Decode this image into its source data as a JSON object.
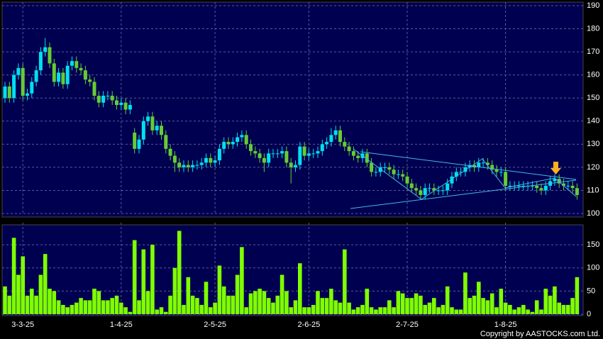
{
  "chart_data": [
    {
      "type": "candlestick",
      "categories": [
        null,
        null,
        null,
        null,
        "3-3-25",
        null,
        null,
        null,
        null,
        null,
        null,
        null,
        null,
        null,
        null,
        null,
        null,
        null,
        null,
        null,
        null,
        null,
        null,
        null,
        null,
        null,
        "1-4-25",
        null,
        null,
        null,
        null,
        null,
        null,
        null,
        null,
        null,
        null,
        null,
        null,
        null,
        null,
        null,
        null,
        null,
        null,
        null,
        null,
        "2-5-25",
        null,
        null,
        null,
        null,
        null,
        null,
        null,
        null,
        null,
        null,
        null,
        null,
        null,
        null,
        null,
        null,
        null,
        null,
        null,
        null,
        "2-6-25",
        null,
        null,
        null,
        null,
        null,
        null,
        null,
        null,
        null,
        null,
        null,
        null,
        null,
        null,
        null,
        null,
        null,
        null,
        null,
        null,
        null,
        "2-7-25",
        null,
        null,
        null,
        null,
        null,
        null,
        null,
        null,
        null,
        null,
        null,
        null,
        null,
        null,
        null,
        null,
        null,
        null,
        null,
        null,
        null,
        "1-8-25",
        null,
        null,
        null,
        null,
        null,
        null,
        null,
        null,
        null,
        null,
        null,
        null,
        null,
        null,
        null,
        null
      ],
      "open": [
        150,
        155,
        150,
        160,
        163,
        151,
        152,
        157,
        162,
        170,
        172,
        165,
        157,
        161,
        156,
        164,
        166,
        163,
        162,
        158,
        157,
        151,
        148,
        151,
        151,
        149,
        147,
        148,
        145,
        135,
        128,
        132,
        140,
        142,
        136,
        138,
        134,
        128,
        125,
        122,
        120,
        121,
        120,
        121,
        121,
        122,
        124,
        122,
        123,
        128,
        131,
        130,
        131,
        133,
        134,
        130,
        127,
        126,
        124,
        122,
        126,
        126,
        126,
        127,
        122,
        120,
        121,
        129,
        125,
        126,
        126,
        127,
        130,
        131,
        134,
        136,
        131,
        129,
        127,
        125,
        124,
        126,
        122,
        118,
        118,
        120,
        120,
        119,
        117,
        117,
        116,
        113,
        111,
        110,
        108,
        111,
        111,
        110,
        110,
        110,
        113,
        116,
        118,
        118,
        120,
        121,
        120,
        122,
        122,
        121,
        119,
        118,
        118,
        112,
        112,
        112,
        112,
        112,
        112,
        112,
        111,
        110,
        112,
        114,
        115,
        113,
        112,
        112,
        111
      ],
      "high": [
        157,
        157,
        162,
        165,
        165,
        154,
        159,
        164,
        172,
        176,
        174,
        167,
        163,
        163,
        166,
        168,
        168,
        165,
        164,
        160,
        159,
        153,
        153,
        153,
        153,
        151,
        150,
        150,
        149,
        137,
        134,
        142,
        144,
        144,
        140,
        140,
        136,
        130,
        127,
        124,
        123,
        123,
        123,
        123,
        124,
        126,
        126,
        125,
        130,
        133,
        133,
        133,
        135,
        136,
        136,
        132,
        129,
        128,
        126,
        128,
        128,
        128,
        129,
        129,
        124,
        123,
        131,
        131,
        128,
        128,
        129,
        132,
        133,
        137,
        138,
        138,
        133,
        131,
        129,
        127,
        128,
        128,
        124,
        120,
        122,
        122,
        122,
        121,
        119,
        119,
        118,
        115,
        113,
        112,
        113,
        113,
        113,
        112,
        112,
        115,
        118,
        120,
        120,
        122,
        123,
        123,
        124,
        124,
        124,
        123,
        121,
        120,
        120,
        114,
        114,
        114,
        114,
        114,
        114,
        114,
        113,
        114,
        116,
        117,
        117,
        115,
        114,
        114,
        113
      ],
      "low": [
        148,
        148,
        148,
        158,
        149,
        149,
        150,
        155,
        160,
        168,
        163,
        155,
        155,
        154,
        154,
        162,
        161,
        160,
        156,
        155,
        149,
        146,
        146,
        149,
        147,
        145,
        145,
        143,
        143,
        126,
        126,
        130,
        138,
        134,
        134,
        132,
        126,
        123,
        118,
        118,
        118,
        118,
        118,
        119,
        119,
        120,
        120,
        120,
        121,
        126,
        128,
        128,
        129,
        131,
        128,
        125,
        124,
        122,
        118,
        120,
        124,
        124,
        124,
        120,
        113,
        118,
        119,
        123,
        123,
        124,
        124,
        125,
        128,
        129,
        132,
        129,
        127,
        125,
        123,
        122,
        122,
        120,
        116,
        116,
        116,
        118,
        117,
        115,
        115,
        114,
        111,
        109,
        108,
        106,
        106,
        109,
        108,
        108,
        108,
        108,
        111,
        114,
        116,
        116,
        118,
        118,
        118,
        120,
        119,
        117,
        116,
        116,
        110,
        110,
        110,
        110,
        110,
        110,
        110,
        109,
        108,
        108,
        110,
        112,
        111,
        110,
        110,
        109,
        106
      ],
      "close": [
        155,
        150,
        160,
        163,
        151,
        152,
        157,
        162,
        170,
        172,
        165,
        157,
        161,
        156,
        164,
        166,
        163,
        162,
        158,
        157,
        151,
        148,
        151,
        151,
        149,
        147,
        148,
        145,
        147,
        128,
        132,
        140,
        142,
        136,
        138,
        134,
        128,
        125,
        122,
        120,
        121,
        120,
        121,
        121,
        122,
        124,
        122,
        123,
        128,
        131,
        130,
        131,
        133,
        134,
        130,
        127,
        126,
        124,
        122,
        126,
        126,
        126,
        127,
        122,
        120,
        121,
        129,
        125,
        126,
        126,
        127,
        130,
        131,
        134,
        136,
        131,
        129,
        127,
        125,
        124,
        126,
        122,
        118,
        118,
        120,
        120,
        119,
        117,
        117,
        116,
        113,
        111,
        110,
        108,
        111,
        111,
        110,
        110,
        110,
        113,
        116,
        118,
        118,
        120,
        121,
        120,
        122,
        122,
        121,
        119,
        118,
        118,
        112,
        112,
        112,
        112,
        112,
        112,
        112,
        111,
        110,
        112,
        114,
        115,
        113,
        112,
        112,
        111,
        108
      ],
      "up_color": "#00e0f0",
      "down_color": "#66cc33",
      "ylim": [
        100,
        190
      ],
      "yticks": [
        100,
        110,
        120,
        130,
        140,
        150,
        160,
        170,
        180,
        190
      ],
      "grid": true
    },
    {
      "type": "bar",
      "values": [
        60,
        40,
        165,
        85,
        125,
        40,
        55,
        40,
        85,
        130,
        55,
        50,
        30,
        20,
        15,
        20,
        25,
        35,
        30,
        30,
        55,
        50,
        30,
        30,
        35,
        40,
        25,
        15,
        5,
        160,
        30,
        140,
        50,
        150,
        10,
        15,
        5,
        40,
        100,
        180,
        20,
        80,
        40,
        35,
        20,
        70,
        15,
        25,
        105,
        60,
        40,
        40,
        85,
        145,
        15,
        45,
        50,
        55,
        50,
        35,
        25,
        40,
        85,
        50,
        15,
        30,
        110,
        15,
        15,
        20,
        50,
        35,
        35,
        55,
        30,
        25,
        140,
        25,
        10,
        15,
        20,
        55,
        15,
        10,
        15,
        15,
        30,
        15,
        50,
        45,
        35,
        35,
        45,
        40,
        20,
        25,
        35,
        15,
        20,
        60,
        15,
        10,
        10,
        90,
        35,
        40,
        70,
        35,
        30,
        45,
        15,
        55,
        25,
        20,
        10,
        15,
        20,
        10,
        5,
        30,
        10,
        55,
        40,
        60,
        25,
        20,
        20,
        35,
        80
      ],
      "color": "#7fff00",
      "ylim": [
        0,
        190
      ],
      "yticks": [
        0,
        50,
        100,
        150
      ],
      "grid": true,
      "credit": "Copyright by AASTOCKS.com Ltd."
    }
  ]
}
